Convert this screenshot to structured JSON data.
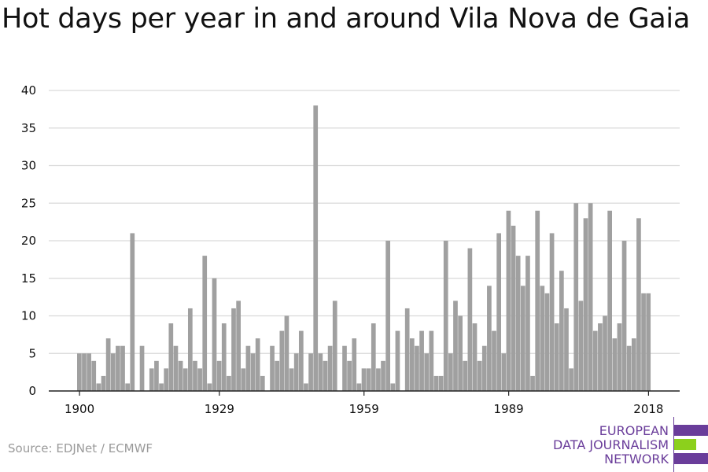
{
  "header": {
    "title": "Hot days per year in and around Vila Nova de Gaia"
  },
  "footer": {
    "source": "Source: EDJNet / ECMWF"
  },
  "logo": {
    "lines": [
      "EUROPEAN",
      "DATA JOURNALISM",
      "NETWORK"
    ],
    "colors": {
      "text": "#6a3d9a",
      "bar_purple": "#6a3d9a",
      "bar_green": "#8cd01c"
    }
  },
  "colors": {
    "bar": "#a0a0a0",
    "grid": "#d9d9d9",
    "axis": "#222222",
    "tick_label": "#111111"
  },
  "chart_data": {
    "type": "bar",
    "title": "Hot days per year in and around Vila Nova de Gaia",
    "xlabel": "",
    "ylabel": "",
    "ylim": [
      0,
      40
    ],
    "yticks": [
      0,
      5,
      10,
      15,
      20,
      25,
      30,
      35,
      40
    ],
    "xticks": [
      1900,
      1929,
      1959,
      1989,
      2018
    ],
    "grid": true,
    "years": [
      1900,
      1901,
      1902,
      1903,
      1904,
      1905,
      1906,
      1907,
      1908,
      1909,
      1910,
      1911,
      1912,
      1913,
      1914,
      1915,
      1916,
      1917,
      1918,
      1919,
      1920,
      1921,
      1922,
      1923,
      1924,
      1925,
      1926,
      1927,
      1928,
      1929,
      1930,
      1931,
      1932,
      1933,
      1934,
      1935,
      1936,
      1937,
      1938,
      1939,
      1940,
      1941,
      1942,
      1943,
      1944,
      1945,
      1946,
      1947,
      1948,
      1949,
      1950,
      1951,
      1952,
      1953,
      1954,
      1955,
      1956,
      1957,
      1958,
      1959,
      1960,
      1961,
      1962,
      1963,
      1964,
      1965,
      1966,
      1967,
      1968,
      1969,
      1970,
      1971,
      1972,
      1973,
      1974,
      1975,
      1976,
      1977,
      1978,
      1979,
      1980,
      1981,
      1982,
      1983,
      1984,
      1985,
      1986,
      1987,
      1988,
      1989,
      1990,
      1991,
      1992,
      1993,
      1994,
      1995,
      1996,
      1997,
      1998,
      1999,
      2000,
      2001,
      2002,
      2003,
      2004,
      2005,
      2006,
      2007,
      2008,
      2009,
      2010,
      2011,
      2012,
      2013,
      2014,
      2015,
      2016,
      2017,
      2018,
      2019
    ],
    "values": [
      5,
      5,
      5,
      4,
      1,
      2,
      7,
      5,
      6,
      6,
      1,
      21,
      0,
      6,
      0,
      3,
      4,
      1,
      3,
      9,
      6,
      4,
      3,
      11,
      4,
      3,
      18,
      1,
      15,
      4,
      9,
      2,
      11,
      12,
      3,
      6,
      5,
      7,
      2,
      0,
      6,
      4,
      8,
      10,
      3,
      5,
      8,
      1,
      5,
      38,
      5,
      4,
      6,
      12,
      0,
      6,
      4,
      7,
      1,
      3,
      3,
      9,
      3,
      4,
      20,
      1,
      8,
      0,
      11,
      7,
      6,
      8,
      5,
      8,
      2,
      2,
      20,
      5,
      12,
      10,
      4,
      19,
      9,
      4,
      6,
      14,
      8,
      21,
      5,
      24,
      22,
      18,
      14,
      18,
      2,
      24,
      14,
      13,
      21,
      9,
      16,
      11,
      3,
      25,
      12,
      23,
      25,
      8,
      9,
      10,
      24,
      7,
      9,
      20,
      6,
      7,
      23,
      13,
      13,
      0
    ]
  }
}
